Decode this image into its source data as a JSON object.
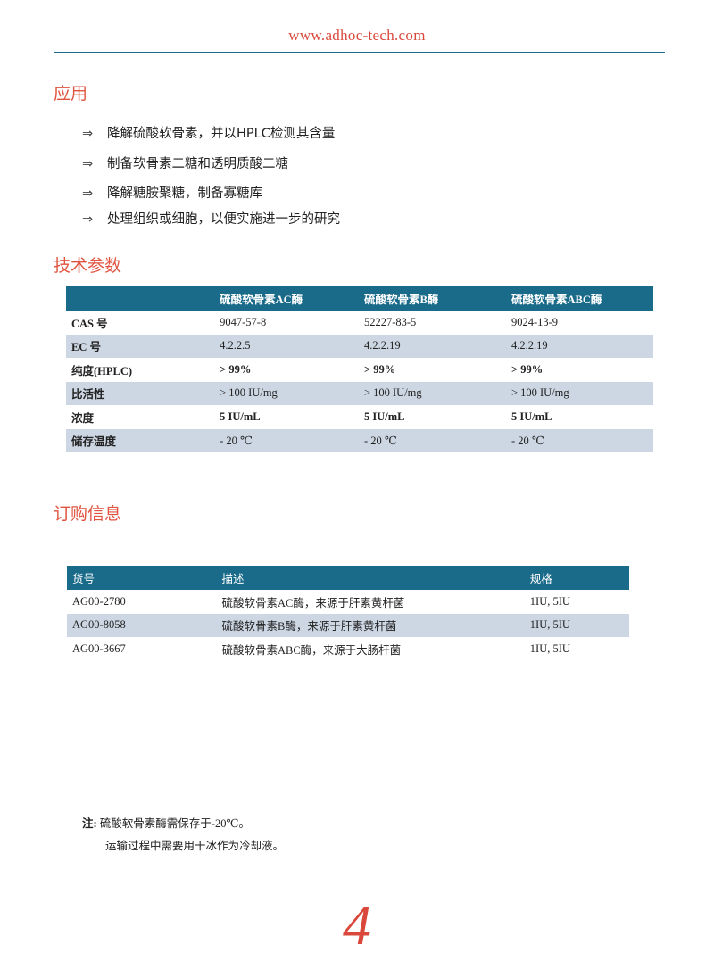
{
  "header": {
    "url": "www.adhoc-tech.com"
  },
  "application": {
    "title": "应用",
    "bullet_icon": "double-arrow-right-icon",
    "bullet_glyph": "⇒",
    "items": [
      "降解硫酸软骨素，并以HPLC检测其含量",
      "制备软骨素二糖和透明质酸二糖",
      "降解糖胺聚糖，制备寡糖库",
      "处理组织或细胞，以便实施进一步的研究"
    ]
  },
  "specs": {
    "title": "技术参数",
    "columns": [
      "",
      "硫酸软骨素AC酶",
      "硫酸软骨素B酶",
      "硫酸软骨素ABC酶"
    ],
    "rows": [
      [
        "CAS 号",
        "9047-57-8",
        "52227-83-5",
        "9024-13-9"
      ],
      [
        "EC 号",
        "4.2.2.5",
        "4.2.2.19",
        "4.2.2.19"
      ],
      [
        "纯度(HPLC)",
        "> 99%",
        "> 99%",
        "> 99%"
      ],
      [
        "比活性",
        "> 100 IU/mg",
        "> 100 IU/mg",
        "> 100 IU/mg"
      ],
      [
        "浓度",
        "5 IU/mL",
        "5 IU/mL",
        "5 IU/mL"
      ],
      [
        "储存温度",
        "- 20 ℃",
        "- 20 ℃",
        "- 20 ℃"
      ]
    ]
  },
  "ordering": {
    "title": "订购信息",
    "columns": [
      "货号",
      "描述",
      "规格"
    ],
    "rows": [
      [
        "AG00-2780",
        "硫酸软骨素AC酶，来源于肝素黄杆菌",
        "1IU, 5IU"
      ],
      [
        "AG00-8058",
        "硫酸软骨素B酶，来源于肝素黄杆菌",
        "1IU, 5IU"
      ],
      [
        "AG00-3667",
        "硫酸软骨素ABC酶，来源于大肠杆菌",
        "1IU, 5IU"
      ]
    ]
  },
  "note": {
    "label": "注:",
    "line1": "硫酸软骨素酶需保存于-20℃。",
    "line2": "运输过程中需要用干冰作为冷却液。"
  },
  "page_number": "4",
  "colors": {
    "accent": "#e0533f",
    "table_header": "#1a6b8a",
    "row_alt": "#cdd7e3"
  }
}
